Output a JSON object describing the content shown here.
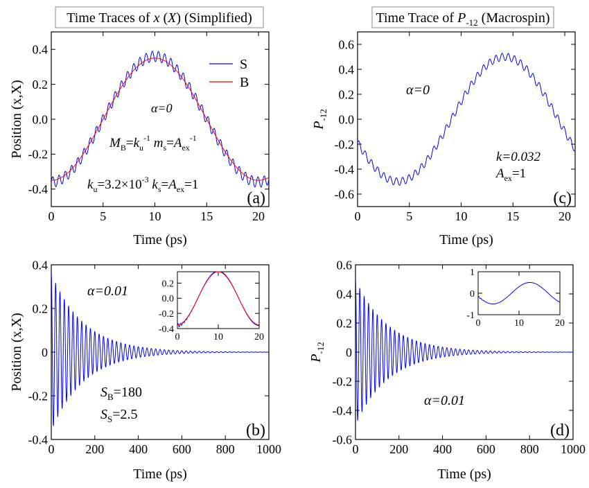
{
  "colors": {
    "series_S": "#0000ff",
    "series_B": "#ff0000",
    "axis": "#000000",
    "title_box": "#888888"
  },
  "chart_data": [
    {
      "id": "a",
      "type": "line",
      "title": "Time Traces of x (X) (Simplified)",
      "title_parts": {
        "pre": "Time Traces of ",
        "v1": "x",
        "mid": " (",
        "v2": "X",
        "post": ") (Simplified)"
      },
      "xlabel": "Time (ps)",
      "ylabel": "Position (x,X)",
      "xlim": [
        0,
        21
      ],
      "ylim": [
        -0.5,
        0.5
      ],
      "xticks": [
        0,
        5,
        10,
        15,
        20
      ],
      "yticks": [
        -0.4,
        -0.2,
        0.0,
        0.2,
        0.4
      ],
      "ytick_labels": [
        "-0.4",
        "-0.2",
        "0.0",
        "0.2",
        "0.4"
      ],
      "panel_label": "(a)",
      "legend": [
        "S",
        "B"
      ],
      "annotations": {
        "alpha": "α=0",
        "relations": {
          "MB": "M",
          "MB_sub": "B",
          "ku": "k",
          "ku_sub": "u",
          "ku_sup": "-1",
          "ms": "m",
          "ms_sub": "s",
          "Aex": "A",
          "Aex_sub": "ex",
          "Aex_sup": "-1"
        },
        "params": {
          "ku": "k",
          "ku_sub": "u",
          "ku_val": "=3.2×10",
          "ku_exp": "-3",
          "ks": "k",
          "ks_sub": "s",
          "eq": "=",
          "A": "A",
          "A_sub": "ex",
          "val": "=1"
        }
      },
      "series": [
        {
          "name": "S",
          "color": "#0000ff",
          "function": "-0.36*cos(2*pi*t/20) + 0.03*sin(2*pi*t/0.6)"
        },
        {
          "name": "B",
          "color": "#ff0000",
          "function": "-0.35*cos(2*pi*t/20)"
        }
      ]
    },
    {
      "id": "c",
      "type": "line",
      "title": "Time Trace of P-12 (Macrospin)",
      "title_parts": {
        "pre": "Time Trace of ",
        "v1": "P",
        "sub": "-12",
        "post": " (Macrospin)"
      },
      "xlabel": "Time (ps)",
      "ylabel": "P-12",
      "ylabel_parts": {
        "main": "P",
        "sub": "-12"
      },
      "xlim": [
        0,
        21
      ],
      "ylim": [
        -0.7,
        0.7
      ],
      "xticks": [
        0,
        5,
        10,
        15,
        20
      ],
      "yticks": [
        -0.6,
        -0.4,
        -0.2,
        0.0,
        0.2,
        0.4,
        0.6
      ],
      "ytick_labels": [
        "-0.6",
        "-0.4",
        "-0.2",
        "0.0",
        "0.2",
        "0.4",
        "0.6"
      ],
      "panel_label": "(c)",
      "annotations": {
        "alpha": "α=0",
        "k": "k=0.032",
        "A": "A",
        "A_sub": "ex",
        "A_val": "=1"
      },
      "series": [
        {
          "name": "P-12",
          "color": "#0000ff",
          "function": "-0.50*sin(2*pi*t/20.6 + 0.38) + 0.03*sin(2*pi*t/0.6)"
        }
      ]
    },
    {
      "id": "b",
      "type": "line",
      "title": "",
      "xlabel": "Time (ps)",
      "ylabel": "Position (x,X)",
      "xlim": [
        0,
        1000
      ],
      "ylim": [
        -0.4,
        0.4
      ],
      "xticks": [
        0,
        200,
        400,
        600,
        800,
        1000
      ],
      "yticks": [
        -0.4,
        -0.2,
        0,
        0.2,
        0.4
      ],
      "ytick_labels": [
        "-0.4",
        "-0.2",
        "0",
        "0.2",
        "0.4"
      ],
      "panel_label": "(b)",
      "annotations": {
        "alpha": "α=0.01",
        "SB": "S",
        "SB_sub": "B",
        "SB_val": "=180",
        "SS": "S",
        "SS_sub": "S",
        "SS_val": "=2.5"
      },
      "series": [
        {
          "name": "x",
          "color": "#0000ff",
          "function": "0.36*cos(2*pi*t/20)*exp(-t/150)"
        }
      ],
      "inset": {
        "xlim": [
          0,
          20
        ],
        "ylim": [
          -0.4,
          0.35
        ],
        "xticks": [
          0,
          10,
          20
        ],
        "yticks": [
          -0.4,
          -0.2,
          0.0,
          0.2
        ],
        "ytick_labels": [
          "-0.4",
          "-0.2",
          "0.0",
          "0.2"
        ],
        "series": [
          {
            "name": "S",
            "color": "#0000ff",
            "function": "-0.36*cos(2*pi*t/20) + 0.03*sin(2*pi*t/0.6)*exp(-t/1.5)"
          },
          {
            "name": "B",
            "color": "#ff0000",
            "function": "-0.35*cos(2*pi*t/20)"
          }
        ]
      }
    },
    {
      "id": "d",
      "type": "line",
      "title": "",
      "xlabel": "Time (ps)",
      "ylabel": "P-12",
      "ylabel_parts": {
        "main": "P",
        "sub": "-12"
      },
      "xlim": [
        0,
        1000
      ],
      "ylim": [
        -0.6,
        0.6
      ],
      "xticks": [
        0,
        200,
        400,
        600,
        800,
        1000
      ],
      "yticks": [
        -0.6,
        -0.4,
        -0.2,
        0,
        0.2,
        0.4,
        0.6
      ],
      "ytick_labels": [
        "-0.6",
        "-0.4",
        "-0.2",
        "0",
        "0.2",
        "0.4",
        "0.6"
      ],
      "panel_label": "(d)",
      "annotations": {
        "alpha": "α=0.01"
      },
      "series": [
        {
          "name": "P-12",
          "color": "#0000ff",
          "function": "0.50*cos(2*pi*t/20)*exp(-t/150)"
        }
      ],
      "inset": {
        "xlim": [
          0,
          20
        ],
        "ylim": [
          -1,
          1
        ],
        "xticks": [
          0,
          10,
          20
        ],
        "yticks": [
          -1,
          0,
          1
        ],
        "ytick_labels": [
          "-1",
          "0",
          "1"
        ],
        "series": [
          {
            "name": "P-12",
            "color": "#0000ff",
            "function": "-0.50*sin(2*pi*t/18 + 0.3) + 0.03*sin(2*pi*t/0.6)*exp(-t/1.5)"
          }
        ]
      }
    }
  ]
}
